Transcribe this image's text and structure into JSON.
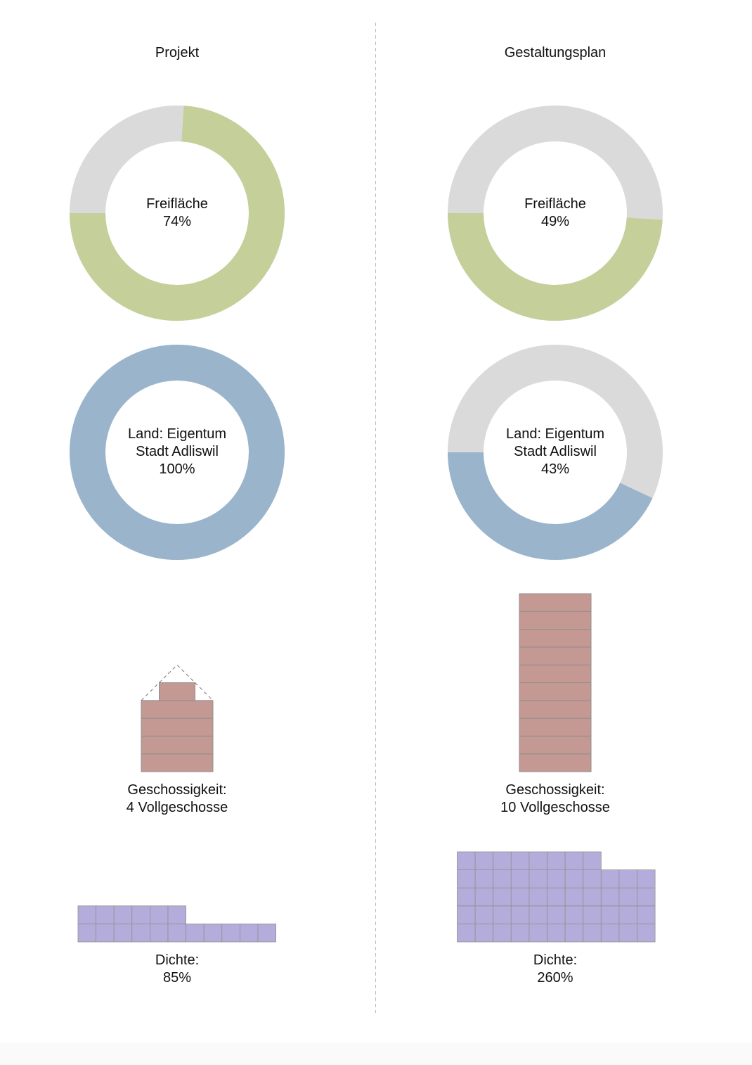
{
  "colors": {
    "green": "#c5cf9a",
    "grey": "#dadada",
    "blue": "#9ab5cb",
    "building": "#c49893",
    "building_line": "#8f8f8f",
    "density": "#b4addb",
    "density_line": "#8f8f8f",
    "divider": "#bbbbbb"
  },
  "columns": {
    "left": {
      "title": "Projekt",
      "freiflaeche": {
        "label": "Freifläche",
        "value_text": "74%"
      },
      "land": {
        "label_line1": "Land: Eigentum",
        "label_line2": "Stadt Adliswil",
        "value_text": "100%"
      },
      "geschossigkeit": {
        "label": "Geschossigkeit:",
        "value_text": "4 Vollgeschosse"
      },
      "dichte": {
        "label": "Dichte:",
        "value_text": "85%"
      }
    },
    "right": {
      "title": "Gestaltungsplan",
      "freiflaeche": {
        "label": "Freifläche",
        "value_text": "49%"
      },
      "land": {
        "label_line1": "Land: Eigentum",
        "label_line2": "Stadt Adliswil",
        "value_text": "43%"
      },
      "geschossigkeit": {
        "label": "Geschossigkeit:",
        "value_text": "10 Vollgeschosse"
      },
      "dichte": {
        "label": "Dichte:",
        "value_text": "260%"
      }
    }
  },
  "chart_data": [
    {
      "type": "pie",
      "variant": "donut",
      "column": "Projekt",
      "label": "Freifläche",
      "values": [
        74,
        26
      ],
      "colors": [
        "green",
        "grey"
      ]
    },
    {
      "type": "pie",
      "variant": "donut",
      "column": "Gestaltungsplan",
      "label": "Freifläche",
      "values": [
        49,
        51
      ],
      "colors": [
        "green",
        "grey"
      ]
    },
    {
      "type": "pie",
      "variant": "donut",
      "column": "Projekt",
      "label": "Land: Eigentum Stadt Adliswil",
      "values": [
        100,
        0
      ],
      "colors": [
        "blue",
        "grey"
      ]
    },
    {
      "type": "pie",
      "variant": "donut",
      "column": "Gestaltungsplan",
      "label": "Land: Eigentum Stadt Adliswil",
      "values": [
        43,
        57
      ],
      "colors": [
        "blue",
        "grey"
      ]
    },
    {
      "type": "bar",
      "variant": "building-floors",
      "column": "Projekt",
      "label": "Geschossigkeit",
      "full_floors": 4,
      "attic": true
    },
    {
      "type": "bar",
      "variant": "building-floors",
      "column": "Gestaltungsplan",
      "label": "Geschossigkeit",
      "full_floors": 10,
      "attic": false
    },
    {
      "type": "bar",
      "variant": "density-grid",
      "column": "Projekt",
      "label": "Dichte",
      "value": 85,
      "cells_row_top": 6,
      "cells_row_bottom": 11,
      "rows": 2
    },
    {
      "type": "bar",
      "variant": "density-grid",
      "column": "Gestaltungsplan",
      "label": "Dichte",
      "value": 260,
      "cells_row_top": 8,
      "cells_row_bottom": 11,
      "rows": 5,
      "full_rows_start": 2
    }
  ]
}
